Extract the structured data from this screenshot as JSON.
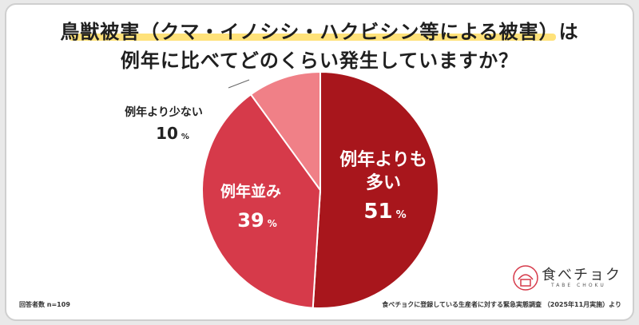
{
  "title": {
    "line1": "鳥獣被害（クマ・イノシシ・ハクビシン等による被害）は",
    "line2": "例年に比べてどのくらい発生していますか？"
  },
  "colors": {
    "more": "#a8161c",
    "same": "#d63a4a",
    "less": "#f08087",
    "highlight": "#ffe27a"
  },
  "chart_data": {
    "type": "pie",
    "title": "鳥獣被害（クマ・イノシシ・ハクビシン等による被害）は例年に比べてどのくらい発生していますか？",
    "slices": [
      {
        "label_lines": [
          "例年よりも",
          "多い"
        ],
        "value": 51,
        "unit": "%"
      },
      {
        "label_lines": [
          "例年並み"
        ],
        "value": 39,
        "unit": "%"
      },
      {
        "label_lines": [
          "例年より少ない"
        ],
        "value": 10,
        "unit": "%"
      }
    ]
  },
  "footer": {
    "respondents": "回答者数 n=109",
    "source": "食べチョクに登録している生産者に対する緊急実態調査 （2025年11月実施）より"
  },
  "logo": {
    "name": "食べチョク",
    "sub": "TABE CHOKU"
  }
}
